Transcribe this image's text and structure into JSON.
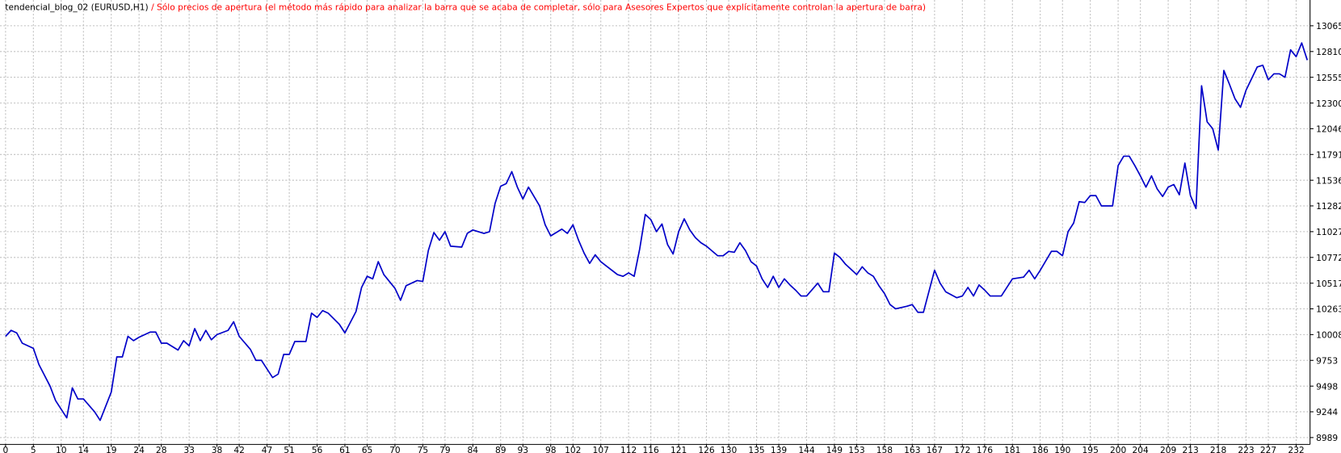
{
  "chart_data": {
    "type": "line",
    "title": "tendencial_blog_02 (EURUSD,H1)",
    "subtitle": "/ Sólo precios de apertura (el método más rápido para analizar la barra que se acaba de completar, sólo para Asesores Expertos que explícitamente controlan la apertura de barra)",
    "x": [
      0,
      1,
      2,
      3,
      5,
      6,
      8,
      9,
      11,
      12,
      13,
      14,
      16,
      17,
      19,
      20,
      21,
      22,
      23,
      24,
      26,
      27,
      28,
      29,
      31,
      32,
      33,
      34,
      35,
      36,
      37,
      38,
      40,
      41,
      42,
      44,
      45,
      46,
      48,
      49,
      50,
      51,
      52,
      54,
      55,
      56,
      57,
      58,
      60,
      61,
      63,
      64,
      65,
      66,
      67,
      68,
      70,
      71,
      72,
      74,
      75,
      76,
      77,
      78,
      79,
      80,
      82,
      83,
      84,
      86,
      87,
      88,
      89,
      90,
      91,
      92,
      93,
      94,
      96,
      97,
      98,
      100,
      101,
      102,
      103,
      104,
      105,
      106,
      107,
      108,
      110,
      111,
      112,
      113,
      114,
      115,
      116,
      117,
      118,
      119,
      120,
      121,
      122,
      123,
      124,
      125,
      126,
      128,
      129,
      130,
      131,
      132,
      133,
      134,
      135,
      136,
      137,
      138,
      139,
      140,
      141,
      142,
      143,
      144,
      146,
      147,
      148,
      149,
      150,
      151,
      153,
      154,
      155,
      156,
      157,
      158,
      159,
      160,
      162,
      163,
      164,
      165,
      167,
      168,
      169,
      171,
      172,
      173,
      174,
      175,
      176,
      177,
      179,
      180,
      181,
      183,
      184,
      185,
      186,
      188,
      189,
      190,
      191,
      192,
      193,
      194,
      195,
      196,
      197,
      199,
      200,
      201,
      202,
      203,
      204,
      205,
      206,
      207,
      208,
      209,
      210,
      211,
      212,
      213,
      214,
      215,
      216,
      217,
      218,
      219,
      220,
      221,
      222,
      223,
      225,
      226,
      227,
      228,
      229,
      230,
      231,
      232,
      233,
      234
    ],
    "series": [
      {
        "color": "#0000c8",
        "values": [
          9991,
          10050,
          10025,
          9923,
          9872,
          9711,
          9498,
          9354,
          9184,
          9481,
          9371,
          9371,
          9244,
          9159,
          9439,
          9787,
          9787,
          9991,
          9948,
          9982,
          10033,
          10033,
          9923,
          9923,
          9855,
          9948,
          9897,
          10067,
          9948,
          10050,
          9957,
          10008,
          10050,
          10135,
          9991,
          9863,
          9753,
          9753,
          9583,
          9617,
          9812,
          9812,
          9940,
          9940,
          10220,
          10178,
          10246,
          10220,
          10110,
          10025,
          10237,
          10475,
          10585,
          10560,
          10730,
          10602,
          10466,
          10348,
          10492,
          10543,
          10534,
          10840,
          11018,
          10942,
          11027,
          10883,
          10874,
          11010,
          11044,
          11010,
          11027,
          11307,
          11477,
          11503,
          11621,
          11468,
          11350,
          11468,
          11282,
          11095,
          10985,
          11052,
          11010,
          11095,
          10942,
          10815,
          10713,
          10798,
          10730,
          10687,
          10602,
          10585,
          10619,
          10585,
          10857,
          11197,
          11146,
          11027,
          11103,
          10900,
          10806,
          11027,
          11154,
          11044,
          10968,
          10917,
          10883,
          10789,
          10789,
          10832,
          10823,
          10917,
          10840,
          10730,
          10687,
          10560,
          10475,
          10585,
          10475,
          10560,
          10500,
          10449,
          10390,
          10390,
          10517,
          10432,
          10432,
          10815,
          10772,
          10704,
          10602,
          10679,
          10619,
          10585,
          10492,
          10415,
          10305,
          10263,
          10288,
          10305,
          10229,
          10229,
          10645,
          10517,
          10432,
          10373,
          10390,
          10475,
          10390,
          10500,
          10449,
          10390,
          10390,
          10475,
          10560,
          10577,
          10645,
          10560,
          10645,
          10832,
          10832,
          10789,
          11027,
          11112,
          11324,
          11316,
          11384,
          11384,
          11282,
          11282,
          11681,
          11774,
          11774,
          11681,
          11579,
          11468,
          11579,
          11452,
          11375,
          11468,
          11494,
          11392,
          11706,
          11384,
          11256,
          12471,
          12114,
          12046,
          11834,
          12623,
          12487,
          12343,
          12258,
          12428,
          12657,
          12674,
          12530,
          12589,
          12589,
          12555,
          12827,
          12759,
          12895,
          12725
        ]
      }
    ],
    "xlim": [
      -1,
      234.5
    ],
    "xticks": [
      0,
      5,
      10,
      14,
      19,
      24,
      28,
      33,
      38,
      42,
      47,
      51,
      56,
      61,
      65,
      70,
      75,
      79,
      84,
      89,
      93,
      98,
      102,
      107,
      112,
      116,
      121,
      126,
      130,
      135,
      139,
      144,
      149,
      153,
      158,
      163,
      167,
      172,
      176,
      181,
      186,
      190,
      195,
      200,
      204,
      209,
      213,
      218,
      223,
      227,
      232
    ],
    "ylim": [
      8921,
      13320
    ],
    "yticks": [
      13065,
      12810,
      12555,
      12300,
      12046,
      11791,
      11536,
      11282,
      11027,
      10772,
      10517,
      10263,
      10008,
      9753,
      9498,
      9244,
      8989
    ],
    "grid": true
  }
}
